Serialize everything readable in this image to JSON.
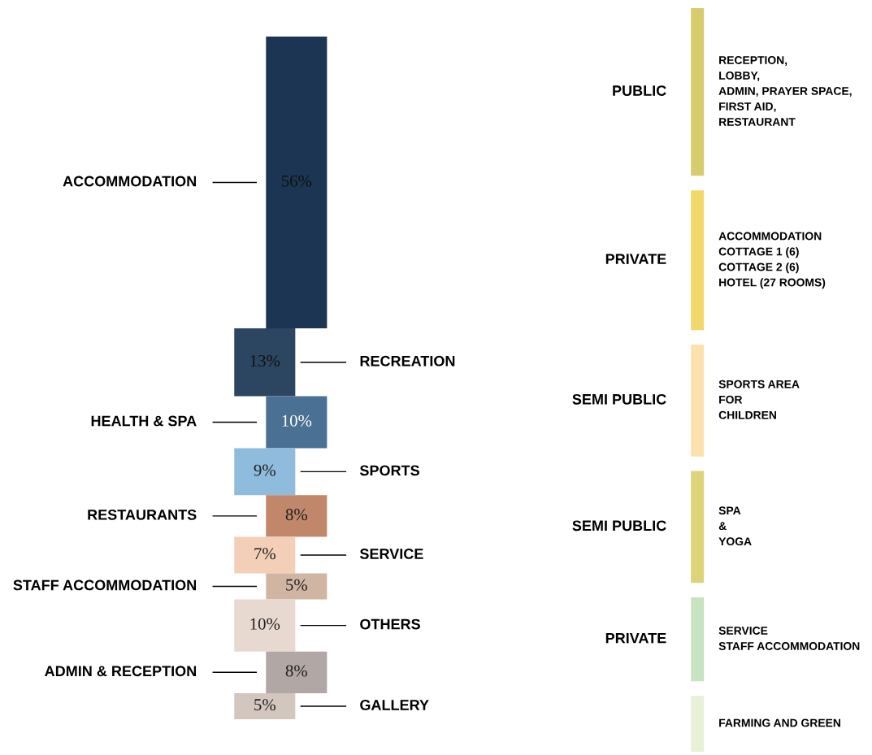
{
  "chart_data": [
    {
      "type": "other",
      "categories": [
        "ACCOMMODATION",
        "RECREATION",
        "HEALTH & SPA",
        "SPORTS",
        "RESTAURANTS",
        "SERVICE",
        "STAFF ACCOMMODATION",
        "OTHERS",
        "ADMIN & RECEPTION",
        "GALLERY"
      ],
      "values": [
        56,
        13,
        10,
        9,
        8,
        7,
        5,
        10,
        8,
        5
      ],
      "value_labels": [
        "56%",
        "13%",
        "10%",
        "9%",
        "8%",
        "7%",
        "5%",
        "10%",
        "8%",
        "5%"
      ],
      "colors": [
        "#1b3552",
        "#2c4560",
        "#4a7193",
        "#8fbbdc",
        "#c0876a",
        "#f3cfb8",
        "#d0b5a3",
        "#e8d9d0",
        "#b1a7a5",
        "#d2c6be"
      ]
    },
    {
      "type": "other",
      "categories": [
        "PUBLIC",
        "PRIVATE",
        "SEMI PUBLIC",
        "SEMI PUBLIC",
        "PRIVATE",
        null
      ],
      "annotations": [
        "RECEPTION,\nLOBBY,\nADMIN, PRAYER SPACE,\nFIRST AID,\nRESTAURANT",
        "ACCOMMODATION\nCOTTAGE 1 (6)\nCOTTAGE 2 (6)\nHOTEL (27 ROOMS)",
        "SPORTS AREA\nFOR\nCHILDREN",
        "SPA\n&\nYOGA",
        "SERVICE\nSTAFF ACCOMMODATION",
        "FARMING AND GREEN"
      ],
      "colors": [
        "#d7cc6b",
        "#f2d86a",
        "#fbe1ae",
        "#ddd47a",
        "#c7e3c0",
        "#e6f1d8"
      ]
    }
  ]
}
